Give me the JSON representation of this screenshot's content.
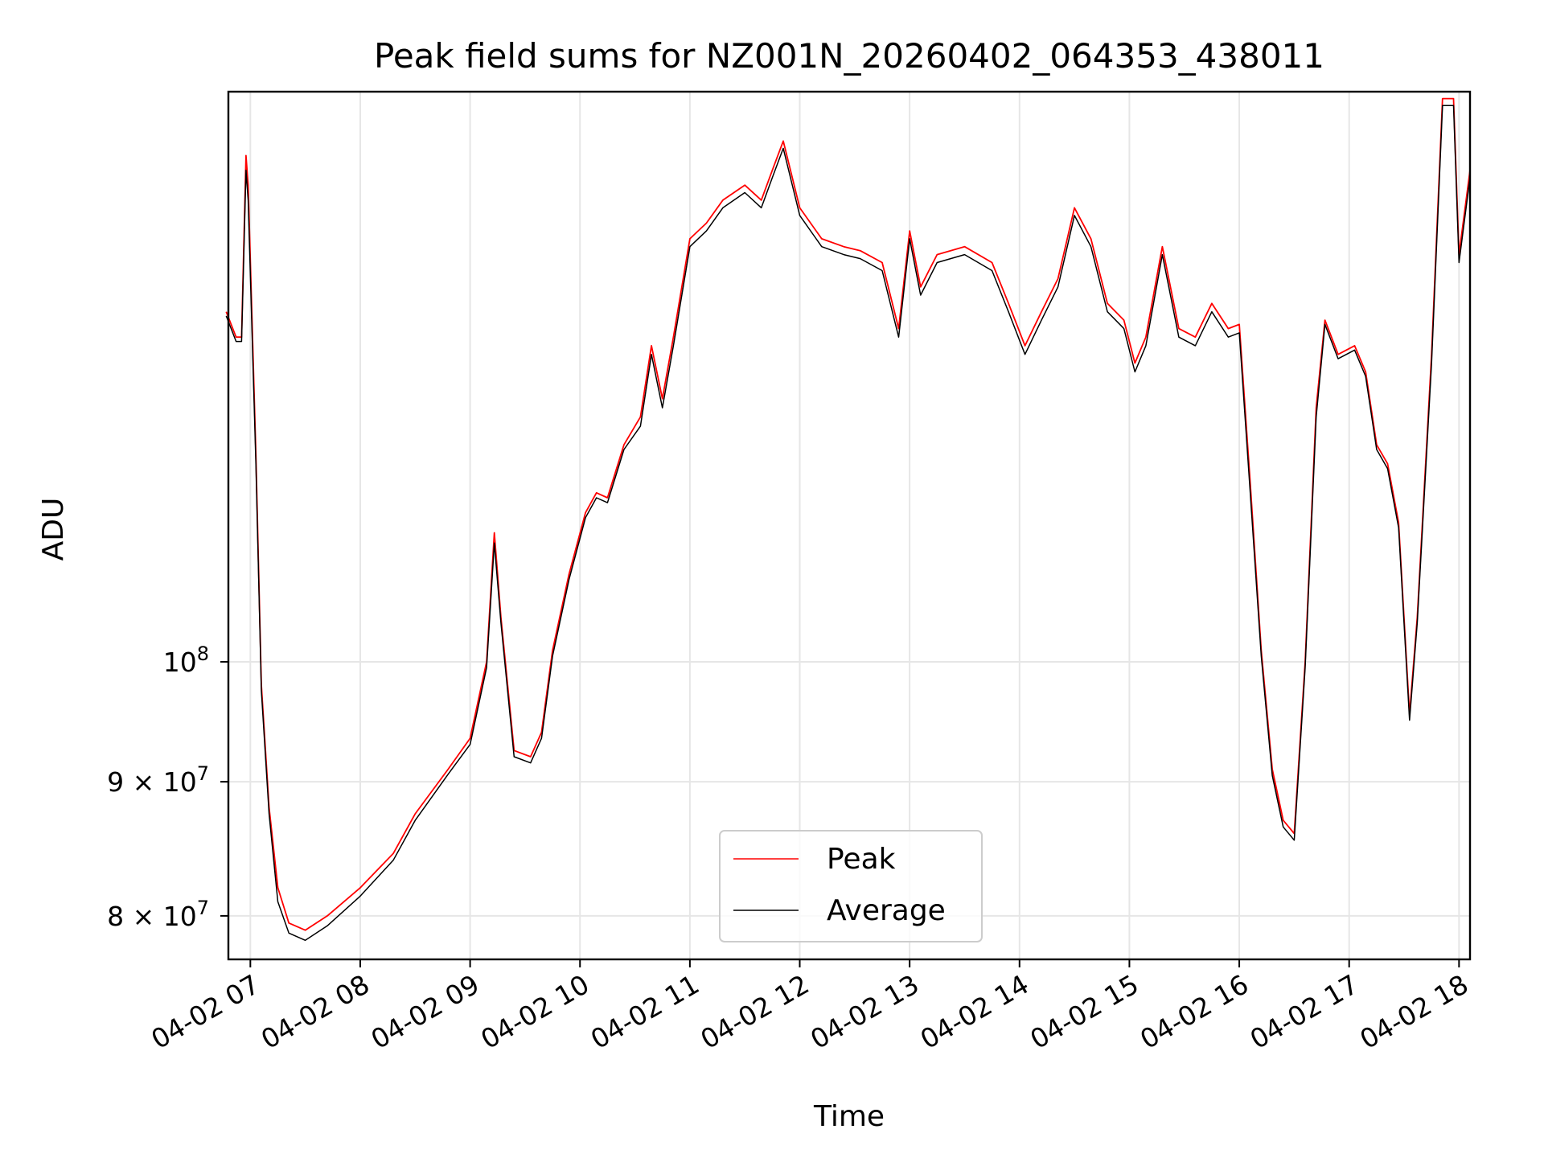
{
  "chart_data": {
    "type": "line",
    "title": "Peak field sums for NZ001N_20260402_064353_438011",
    "xlabel": "Time",
    "ylabel": "ADU",
    "yscale": "log",
    "xlim": [
      6.8,
      18.1
    ],
    "ylim": [
      77000000,
      165000000
    ],
    "x_ticks": [
      {
        "value": 7,
        "label": "04-02 07"
      },
      {
        "value": 8,
        "label": "04-02 08"
      },
      {
        "value": 9,
        "label": "04-02 09"
      },
      {
        "value": 10,
        "label": "04-02 10"
      },
      {
        "value": 11,
        "label": "04-02 11"
      },
      {
        "value": 12,
        "label": "04-02 12"
      },
      {
        "value": 13,
        "label": "04-02 13"
      },
      {
        "value": 14,
        "label": "04-02 14"
      },
      {
        "value": 15,
        "label": "04-02 15"
      },
      {
        "value": 16,
        "label": "04-02 16"
      },
      {
        "value": 17,
        "label": "04-02 17"
      },
      {
        "value": 18,
        "label": "04-02 18"
      }
    ],
    "y_ticks": [
      {
        "value": 80000000,
        "base": "8 × 10",
        "exp": "7"
      },
      {
        "value": 90000000,
        "base": "9 × 10",
        "exp": "7"
      },
      {
        "value": 100000000,
        "base": "10",
        "exp": "8"
      }
    ],
    "grid": true,
    "legend_position": "bottom-center",
    "series": [
      {
        "name": "Peak",
        "color": "#ff0000",
        "points": [
          [
            6.78,
            136000000
          ],
          [
            6.87,
            133000000
          ],
          [
            6.92,
            133000000
          ],
          [
            6.96,
            156000000
          ],
          [
            6.98,
            152000000
          ],
          [
            7.05,
            120000000
          ],
          [
            7.1,
            98000000
          ],
          [
            7.17,
            88000000
          ],
          [
            7.25,
            82000000
          ],
          [
            7.35,
            79500000
          ],
          [
            7.5,
            79000000
          ],
          [
            7.7,
            80000000
          ],
          [
            8.0,
            82000000
          ],
          [
            8.3,
            84500000
          ],
          [
            8.5,
            87500000
          ],
          [
            8.8,
            91000000
          ],
          [
            9.0,
            93500000
          ],
          [
            9.15,
            100000000
          ],
          [
            9.22,
            112000000
          ],
          [
            9.28,
            104000000
          ],
          [
            9.4,
            92500000
          ],
          [
            9.55,
            92000000
          ],
          [
            9.65,
            94000000
          ],
          [
            9.75,
            101000000
          ],
          [
            9.9,
            108000000
          ],
          [
            10.05,
            114000000
          ],
          [
            10.15,
            116000000
          ],
          [
            10.25,
            115500000
          ],
          [
            10.4,
            121000000
          ],
          [
            10.55,
            124000000
          ],
          [
            10.65,
            132000000
          ],
          [
            10.75,
            126000000
          ],
          [
            10.85,
            133000000
          ],
          [
            11.0,
            145000000
          ],
          [
            11.15,
            147000000
          ],
          [
            11.3,
            150000000
          ],
          [
            11.5,
            152000000
          ],
          [
            11.65,
            150000000
          ],
          [
            11.75,
            154000000
          ],
          [
            11.85,
            158000000
          ],
          [
            12.0,
            149000000
          ],
          [
            12.2,
            145000000
          ],
          [
            12.4,
            144000000
          ],
          [
            12.55,
            143500000
          ],
          [
            12.75,
            142000000
          ],
          [
            12.9,
            134000000
          ],
          [
            13.0,
            146000000
          ],
          [
            13.1,
            139000000
          ],
          [
            13.25,
            143000000
          ],
          [
            13.5,
            144000000
          ],
          [
            13.75,
            142000000
          ],
          [
            13.9,
            137000000
          ],
          [
            14.05,
            132000000
          ],
          [
            14.2,
            136000000
          ],
          [
            14.35,
            140000000
          ],
          [
            14.5,
            149000000
          ],
          [
            14.65,
            145000000
          ],
          [
            14.8,
            137000000
          ],
          [
            14.95,
            135000000
          ],
          [
            15.05,
            130000000
          ],
          [
            15.15,
            133000000
          ],
          [
            15.3,
            144000000
          ],
          [
            15.45,
            134000000
          ],
          [
            15.6,
            133000000
          ],
          [
            15.75,
            137000000
          ],
          [
            15.9,
            134000000
          ],
          [
            16.0,
            134500000
          ],
          [
            16.1,
            117000000
          ],
          [
            16.2,
            101000000
          ],
          [
            16.3,
            91000000
          ],
          [
            16.4,
            87000000
          ],
          [
            16.5,
            86000000
          ],
          [
            16.6,
            100000000
          ],
          [
            16.7,
            125000000
          ],
          [
            16.78,
            135000000
          ],
          [
            16.9,
            131000000
          ],
          [
            17.05,
            132000000
          ],
          [
            17.15,
            129000000
          ],
          [
            17.25,
            121000000
          ],
          [
            17.35,
            119000000
          ],
          [
            17.45,
            113000000
          ],
          [
            17.55,
            95500000
          ],
          [
            17.62,
            104000000
          ],
          [
            17.75,
            131000000
          ],
          [
            17.85,
            164000000
          ],
          [
            17.95,
            164000000
          ],
          [
            18.0,
            143000000
          ],
          [
            18.1,
            154000000
          ]
        ]
      },
      {
        "name": "Average",
        "color": "#000000",
        "points": [
          [
            6.78,
            135500000
          ],
          [
            6.87,
            132500000
          ],
          [
            6.92,
            132500000
          ],
          [
            6.96,
            154000000
          ],
          [
            6.98,
            150000000
          ],
          [
            7.05,
            119000000
          ],
          [
            7.1,
            97500000
          ],
          [
            7.17,
            87500000
          ],
          [
            7.25,
            81000000
          ],
          [
            7.35,
            78800000
          ],
          [
            7.5,
            78300000
          ],
          [
            7.7,
            79300000
          ],
          [
            8.0,
            81400000
          ],
          [
            8.3,
            84000000
          ],
          [
            8.5,
            87000000
          ],
          [
            8.8,
            90600000
          ],
          [
            9.0,
            93000000
          ],
          [
            9.15,
            99500000
          ],
          [
            9.22,
            111000000
          ],
          [
            9.28,
            103500000
          ],
          [
            9.4,
            92000000
          ],
          [
            9.55,
            91500000
          ],
          [
            9.65,
            93500000
          ],
          [
            9.75,
            100500000
          ],
          [
            9.9,
            107500000
          ],
          [
            10.05,
            113500000
          ],
          [
            10.15,
            115500000
          ],
          [
            10.25,
            115000000
          ],
          [
            10.4,
            120500000
          ],
          [
            10.55,
            123000000
          ],
          [
            10.65,
            131000000
          ],
          [
            10.75,
            125000000
          ],
          [
            10.85,
            132000000
          ],
          [
            11.0,
            144000000
          ],
          [
            11.15,
            146000000
          ],
          [
            11.3,
            149000000
          ],
          [
            11.5,
            151000000
          ],
          [
            11.65,
            149000000
          ],
          [
            11.75,
            153000000
          ],
          [
            11.85,
            157000000
          ],
          [
            12.0,
            148000000
          ],
          [
            12.2,
            144000000
          ],
          [
            12.4,
            143000000
          ],
          [
            12.55,
            142500000
          ],
          [
            12.75,
            141000000
          ],
          [
            12.9,
            133000000
          ],
          [
            13.0,
            145000000
          ],
          [
            13.1,
            138000000
          ],
          [
            13.25,
            142000000
          ],
          [
            13.5,
            143000000
          ],
          [
            13.75,
            141000000
          ],
          [
            13.9,
            136000000
          ],
          [
            14.05,
            131000000
          ],
          [
            14.2,
            135000000
          ],
          [
            14.35,
            139000000
          ],
          [
            14.5,
            148000000
          ],
          [
            14.65,
            144000000
          ],
          [
            14.8,
            136000000
          ],
          [
            14.95,
            134000000
          ],
          [
            15.05,
            129000000
          ],
          [
            15.15,
            132000000
          ],
          [
            15.3,
            143000000
          ],
          [
            15.45,
            133000000
          ],
          [
            15.6,
            132000000
          ],
          [
            15.75,
            136000000
          ],
          [
            15.9,
            133000000
          ],
          [
            16.0,
            133500000
          ],
          [
            16.1,
            116000000
          ],
          [
            16.2,
            100500000
          ],
          [
            16.3,
            90500000
          ],
          [
            16.4,
            86500000
          ],
          [
            16.5,
            85500000
          ],
          [
            16.6,
            99500000
          ],
          [
            16.7,
            124000000
          ],
          [
            16.78,
            134500000
          ],
          [
            16.9,
            130500000
          ],
          [
            17.05,
            131500000
          ],
          [
            17.15,
            128500000
          ],
          [
            17.25,
            120500000
          ],
          [
            17.35,
            118500000
          ],
          [
            17.45,
            112500000
          ],
          [
            17.55,
            95000000
          ],
          [
            17.62,
            103500000
          ],
          [
            17.75,
            130000000
          ],
          [
            17.85,
            163000000
          ],
          [
            17.95,
            163000000
          ],
          [
            18.0,
            142000000
          ],
          [
            18.1,
            153000000
          ]
        ]
      }
    ]
  }
}
